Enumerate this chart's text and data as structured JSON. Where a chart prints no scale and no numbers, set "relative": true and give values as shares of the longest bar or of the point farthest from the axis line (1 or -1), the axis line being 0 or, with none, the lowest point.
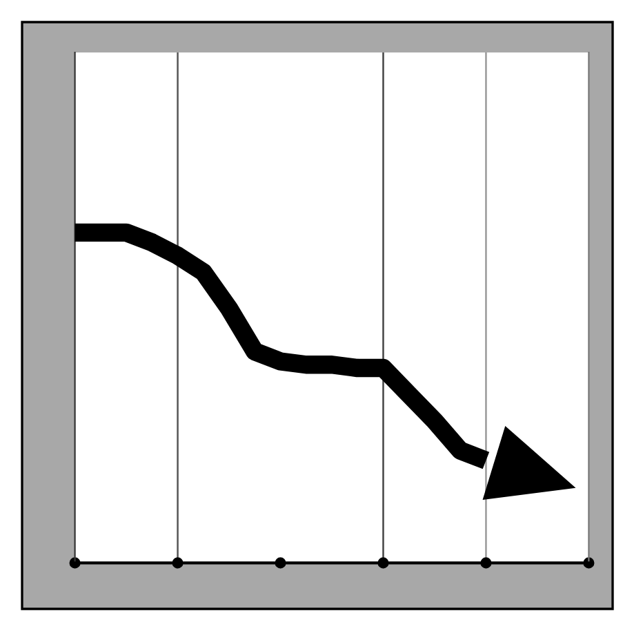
{
  "chart_data": {
    "type": "line",
    "relative": true,
    "categories": [
      null,
      null,
      null,
      null,
      null,
      null,
      null,
      null,
      null,
      null,
      null,
      null,
      null,
      null,
      null,
      null,
      null,
      null,
      null,
      null,
      null
    ],
    "series": [
      {
        "color": "#000000",
        "values": [
          1,
          1,
          1,
          0.97,
          0.93,
          0.88,
          0.77,
          0.64,
          0.61,
          0.6,
          0.6,
          0.59,
          0.59,
          0.51,
          0.43,
          0.34,
          0.31,
          null,
          null,
          null,
          null
        ]
      }
    ]
  }
}
